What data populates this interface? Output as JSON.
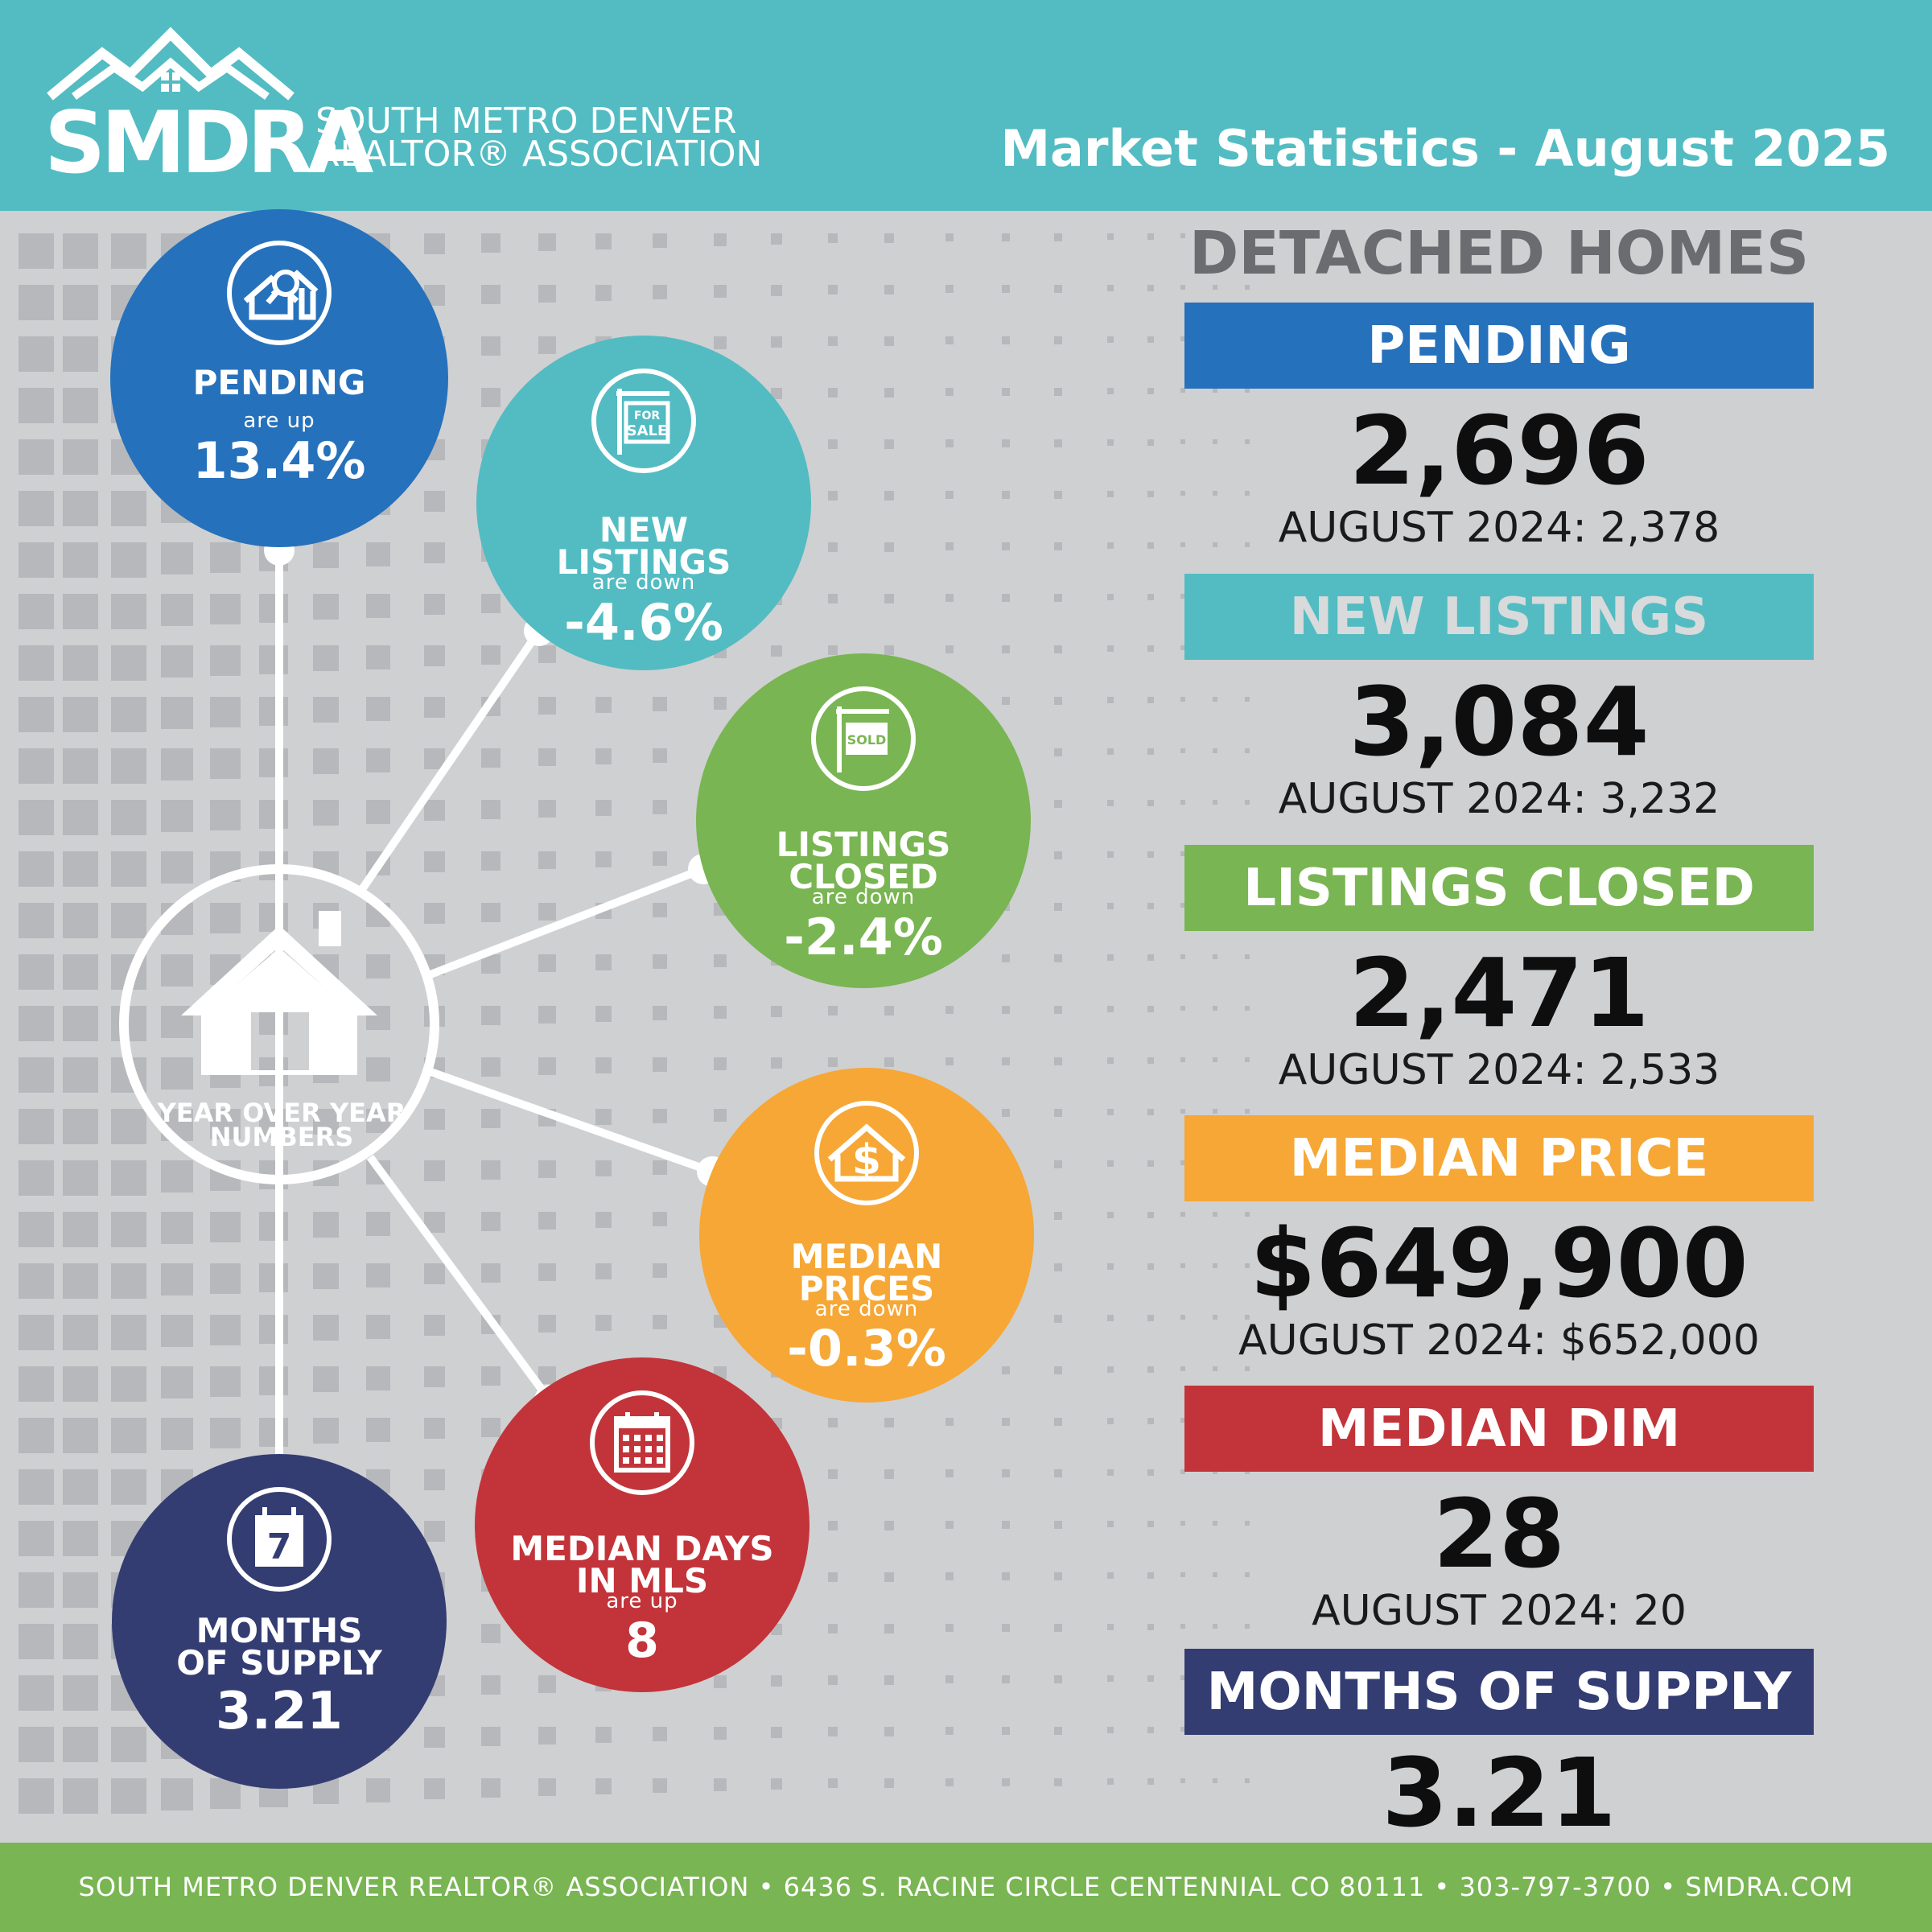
{
  "header": {
    "logo_word": "SMDRA",
    "logo_line1": "SOUTH METRO DENVER",
    "logo_line2": "REALTOR® ASSOCIATION",
    "title": "Market Statistics - August 2025"
  },
  "column_title": "DETACHED HOMES",
  "stats": [
    {
      "label": "PENDING",
      "value": "2,696",
      "previous": "AUGUST 2024: 2,378",
      "bar_color": "#2671bc",
      "text_color": "#ffffff"
    },
    {
      "label": "NEW LISTINGS",
      "value": "3,084",
      "previous": "AUGUST 2024: 3,232",
      "bar_color": "#52bcc2",
      "text_color": "#d8dadb"
    },
    {
      "label": "LISTINGS CLOSED",
      "value": "2,471",
      "previous": "AUGUST 2024: 2,533",
      "bar_color": "#79b552",
      "text_color": "#ffffff"
    },
    {
      "label": "MEDIAN PRICE",
      "value": "$649,900",
      "previous": "AUGUST 2024: $652,000",
      "bar_color": "#f6a735",
      "text_color": "#ffffff"
    },
    {
      "label": "MEDIAN DIM",
      "value": "28",
      "previous": "AUGUST 2024: 20",
      "bar_color": "#c2343a",
      "text_color": "#ffffff"
    },
    {
      "label": "MONTHS OF SUPPLY",
      "value": "3.21",
      "previous": "",
      "bar_color": "#333d72",
      "text_color": "#ffffff"
    }
  ],
  "hub": {
    "label_line1": "YEAR OVER YEAR",
    "label_line2": "NUMBERS"
  },
  "circles": [
    {
      "id": "pending",
      "label_line1": "PENDING",
      "label_line2": "",
      "direction": "are up",
      "value": "13.4%",
      "color": "#2671bc",
      "icon": "house-search-icon"
    },
    {
      "id": "new-listings",
      "label_line1": "NEW",
      "label_line2": "LISTINGS",
      "direction": "are down",
      "value": "-4.6%",
      "color": "#52bcc2",
      "icon": "for-sale-sign-icon",
      "icon_text_1": "FOR",
      "icon_text_2": "SALE"
    },
    {
      "id": "listings-closed",
      "label_line1": "LISTINGS",
      "label_line2": "CLOSED",
      "direction": "are down",
      "value": "-2.4%",
      "color": "#79b552",
      "icon": "sold-sign-icon",
      "icon_text_1": "SOLD"
    },
    {
      "id": "median-prices",
      "label_line1": "MEDIAN",
      "label_line2": "PRICES",
      "direction": "are down",
      "value": "-0.3%",
      "color": "#f6a735",
      "icon": "house-dollar-icon",
      "icon_text_1": "$"
    },
    {
      "id": "median-days",
      "label_line1": "MEDIAN DAYS",
      "label_line2": "IN MLS",
      "direction": "are up",
      "value": "8",
      "color": "#c2343a",
      "icon": "calendar-icon"
    },
    {
      "id": "months-supply",
      "label_line1": "MONTHS",
      "label_line2": "OF SUPPLY",
      "direction": "",
      "value": "3.21",
      "color": "#333d72",
      "icon": "calendar-seven-icon",
      "icon_text_1": "7"
    }
  ],
  "footer": {
    "text": "SOUTH METRO DENVER REALTOR® ASSOCIATION • 6436 S. RACINE CIRCLE CENTENNIAL CO 80111 •  303-797-3700 • SMDRA.COM"
  }
}
